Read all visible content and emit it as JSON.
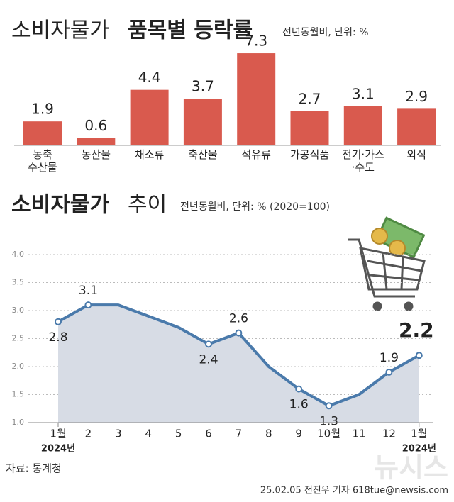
{
  "chart_data": [
    {
      "type": "bar",
      "title": [
        "소비자물가",
        "품목별 등락률"
      ],
      "note": "전년동월비, 단위: %",
      "categories": [
        "농축\n수산물",
        "농산물",
        "채소류",
        "축산물",
        "석유류",
        "가공식품",
        "전기·가스\n·수도",
        "외식"
      ],
      "values": [
        1.9,
        0.6,
        4.4,
        3.7,
        7.3,
        2.7,
        3.1,
        2.9
      ],
      "color": "#d95a4e"
    },
    {
      "type": "line",
      "title": [
        "소비자물가",
        "추이"
      ],
      "note": "전년동월비, 단위: % (2020=100)",
      "categories": [
        "1월",
        "2",
        "3",
        "4",
        "5",
        "6",
        "7",
        "8",
        "9",
        "10월",
        "11",
        "12",
        "1월"
      ],
      "x_sublabels": [
        "2024년",
        null,
        null,
        null,
        null,
        null,
        null,
        null,
        null,
        null,
        null,
        null,
        "2024년"
      ],
      "values": [
        2.8,
        3.1,
        3.1,
        2.9,
        2.7,
        2.4,
        2.6,
        2.0,
        1.6,
        1.3,
        1.5,
        1.9,
        2.2
      ],
      "value_labels": [
        "2.8",
        "3.1",
        null,
        null,
        null,
        "2.4",
        "2.6",
        null,
        "1.6",
        "1.3",
        null,
        "1.9",
        "2.2"
      ],
      "color": "#4a7aab",
      "area_color": "#d7dce5",
      "ylim": [
        1.0,
        4.0
      ],
      "yticks": [
        {
          "value": 1.0,
          "label": "1.0"
        },
        {
          "value": 1.5,
          "label": "1.5"
        },
        {
          "value": 2.0,
          "label": "2.0"
        },
        {
          "value": 2.5,
          "label": "2.5"
        },
        {
          "value": 3.0,
          "label": "3.0"
        },
        {
          "value": 3.5,
          "label": "3.5"
        },
        {
          "value": 4.0,
          "label": "4.0"
        }
      ],
      "grid": true
    }
  ],
  "source": "자료: 통계청",
  "credit": "25.02.05 전진우 기자 618tue@newsis.com",
  "watermark": "뉴시스"
}
